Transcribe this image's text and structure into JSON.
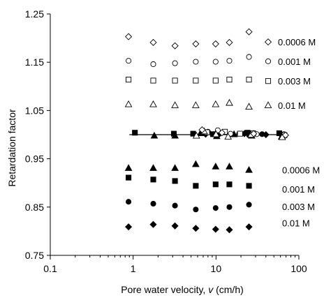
{
  "chart_data": {
    "type": "scatter",
    "xlabel_main": "Pore water velocity, ",
    "xlabel_var": "v",
    "xlabel_unit": " (cm/h)",
    "ylabel": "Retardation factor",
    "x_scale": "log",
    "xlim": [
      0.1,
      100
    ],
    "ylim": [
      0.75,
      1.25
    ],
    "x_ticks": [
      0.1,
      1,
      10,
      100
    ],
    "x_tick_labels": [
      "0.1",
      "1",
      "10",
      "100"
    ],
    "y_ticks": [
      0.75,
      0.85,
      0.95,
      1.05,
      1.15,
      1.25
    ],
    "y_tick_labels": [
      "0.75",
      "0.85",
      "0.95",
      "1.05",
      "1.15",
      "1.25"
    ],
    "grid": false,
    "reference_line": {
      "y": 1.0,
      "x_range": [
        0.9,
        60
      ]
    },
    "series": [
      {
        "name": "0.0006 M",
        "marker": "diamond-open",
        "points": [
          [
            0.88,
            1.203
          ],
          [
            1.75,
            1.191
          ],
          [
            3.2,
            1.184
          ],
          [
            5.7,
            1.188
          ],
          [
            9.9,
            1.188
          ],
          [
            14.5,
            1.191
          ],
          [
            25,
            1.213
          ]
        ]
      },
      {
        "name": "0.001 M",
        "marker": "circle-open",
        "points": [
          [
            0.88,
            1.153
          ],
          [
            1.75,
            1.146
          ],
          [
            3.2,
            1.148
          ],
          [
            5.7,
            1.151
          ],
          [
            9.9,
            1.151
          ],
          [
            14.5,
            1.153
          ],
          [
            25,
            1.161
          ]
        ]
      },
      {
        "name": "0.003 M",
        "marker": "square-open",
        "points": [
          [
            0.88,
            1.114
          ],
          [
            1.75,
            1.112
          ],
          [
            3.2,
            1.112
          ],
          [
            5.7,
            1.112
          ],
          [
            9.9,
            1.112
          ],
          [
            14.5,
            1.114
          ],
          [
            25,
            1.114
          ]
        ]
      },
      {
        "name": "0.01 M",
        "marker": "triangle-open",
        "points": [
          [
            0.88,
            1.063
          ],
          [
            1.75,
            1.063
          ],
          [
            3.2,
            1.061
          ],
          [
            5.7,
            1.061
          ],
          [
            9.9,
            1.063
          ],
          [
            14.5,
            1.066
          ],
          [
            25,
            1.058
          ]
        ]
      },
      {
        "name": "0.0006 M",
        "marker": "triangle-filled",
        "points": [
          [
            0.88,
            0.931
          ],
          [
            1.75,
            0.931
          ],
          [
            3.2,
            0.931
          ],
          [
            5.7,
            0.939
          ],
          [
            9.9,
            0.934
          ],
          [
            14.5,
            0.934
          ],
          [
            25,
            0.927
          ]
        ]
      },
      {
        "name": "0.001 M",
        "marker": "square-filled",
        "points": [
          [
            0.88,
            0.911
          ],
          [
            1.75,
            0.907
          ],
          [
            3.2,
            0.904
          ],
          [
            5.7,
            0.894
          ],
          [
            9.9,
            0.897
          ],
          [
            14.5,
            0.897
          ],
          [
            25,
            0.894
          ]
        ]
      },
      {
        "name": "0.003 M",
        "marker": "circle-filled",
        "points": [
          [
            0.88,
            0.861
          ],
          [
            1.75,
            0.857
          ],
          [
            3.2,
            0.853
          ],
          [
            5.7,
            0.845
          ],
          [
            9.9,
            0.848
          ],
          [
            14.5,
            0.85
          ],
          [
            25,
            0.855
          ]
        ]
      },
      {
        "name": "0.01 M",
        "marker": "diamond-filled",
        "points": [
          [
            0.88,
            0.809
          ],
          [
            1.75,
            0.814
          ],
          [
            3.2,
            0.811
          ],
          [
            5.7,
            0.806
          ],
          [
            9.9,
            0.804
          ],
          [
            14.5,
            0.803
          ],
          [
            25,
            0.809
          ]
        ]
      },
      {
        "name": "",
        "marker": "square-filled",
        "points": [
          [
            1.05,
            1.004
          ],
          [
            3.1,
            1.002
          ],
          [
            5.3,
            1.002
          ],
          [
            9.2,
            1.001
          ],
          [
            24,
            1.004
          ],
          [
            58,
            1.003
          ]
        ]
      },
      {
        "name": "",
        "marker": "triangle-filled",
        "points": [
          [
            1.8,
            0.998
          ],
          [
            3.2,
            0.998
          ],
          [
            6.5,
            1.003
          ],
          [
            10.2,
            0.997
          ],
          [
            16.5,
            1.001
          ],
          [
            27,
            0.998
          ],
          [
            62,
            0.996
          ]
        ]
      },
      {
        "name": "",
        "marker": "circle-filled",
        "points": [
          [
            8.0,
            1.006
          ],
          [
            11.2,
            1.003
          ],
          [
            19,
            1.002
          ],
          [
            25,
            0.999
          ],
          [
            36,
            1.001
          ],
          [
            64,
            1.0
          ]
        ]
      },
      {
        "name": "",
        "marker": "diamond-filled",
        "points": [
          [
            7.5,
            1.001
          ],
          [
            10.5,
            0.998
          ],
          [
            22,
            1.002
          ],
          [
            40,
            1.0
          ],
          [
            60,
            1.001
          ]
        ]
      },
      {
        "name": "",
        "marker": "circle-open",
        "points": [
          [
            10.5,
            1.009
          ],
          [
            15,
            1.002
          ],
          [
            31,
            1.001
          ],
          [
            66,
            1.001
          ]
        ]
      },
      {
        "name": "",
        "marker": "square-open",
        "points": [
          [
            7.8,
            1.005
          ],
          [
            12.8,
            1.006
          ],
          [
            19.5,
            1.002
          ],
          [
            28,
            1.003
          ],
          [
            67,
            0.999
          ]
        ]
      },
      {
        "name": "",
        "marker": "triangle-open",
        "points": [
          [
            7.2,
            1.007
          ],
          [
            5.8,
            0.998
          ],
          [
            10,
            1.001
          ],
          [
            14,
            0.996
          ],
          [
            26.5,
            1.0
          ],
          [
            63,
            0.995
          ]
        ]
      },
      {
        "name": "",
        "marker": "diamond-open",
        "points": [
          [
            6.8,
            1.01
          ],
          [
            11.8,
            1.004
          ],
          [
            28.5,
            1.002
          ],
          [
            69,
            0.999
          ]
        ]
      }
    ],
    "legend_labels": [
      {
        "text": "0.0006 M",
        "marker": "diamond-open",
        "y": 1.192
      },
      {
        "text": "0.001 M",
        "marker": "circle-open",
        "y": 1.152
      },
      {
        "text": "0.003 M",
        "marker": "square-open",
        "y": 1.111
      },
      {
        "text": "0.01 M",
        "marker": "triangle-open",
        "y": 1.061
      },
      {
        "text": "0.0006 M",
        "marker": null,
        "y": 0.927
      },
      {
        "text": "0.001 M",
        "marker": null,
        "y": 0.887
      },
      {
        "text": "0.003 M",
        "marker": null,
        "y": 0.851
      },
      {
        "text": "0.01 M",
        "marker": null,
        "y": 0.817
      }
    ]
  }
}
